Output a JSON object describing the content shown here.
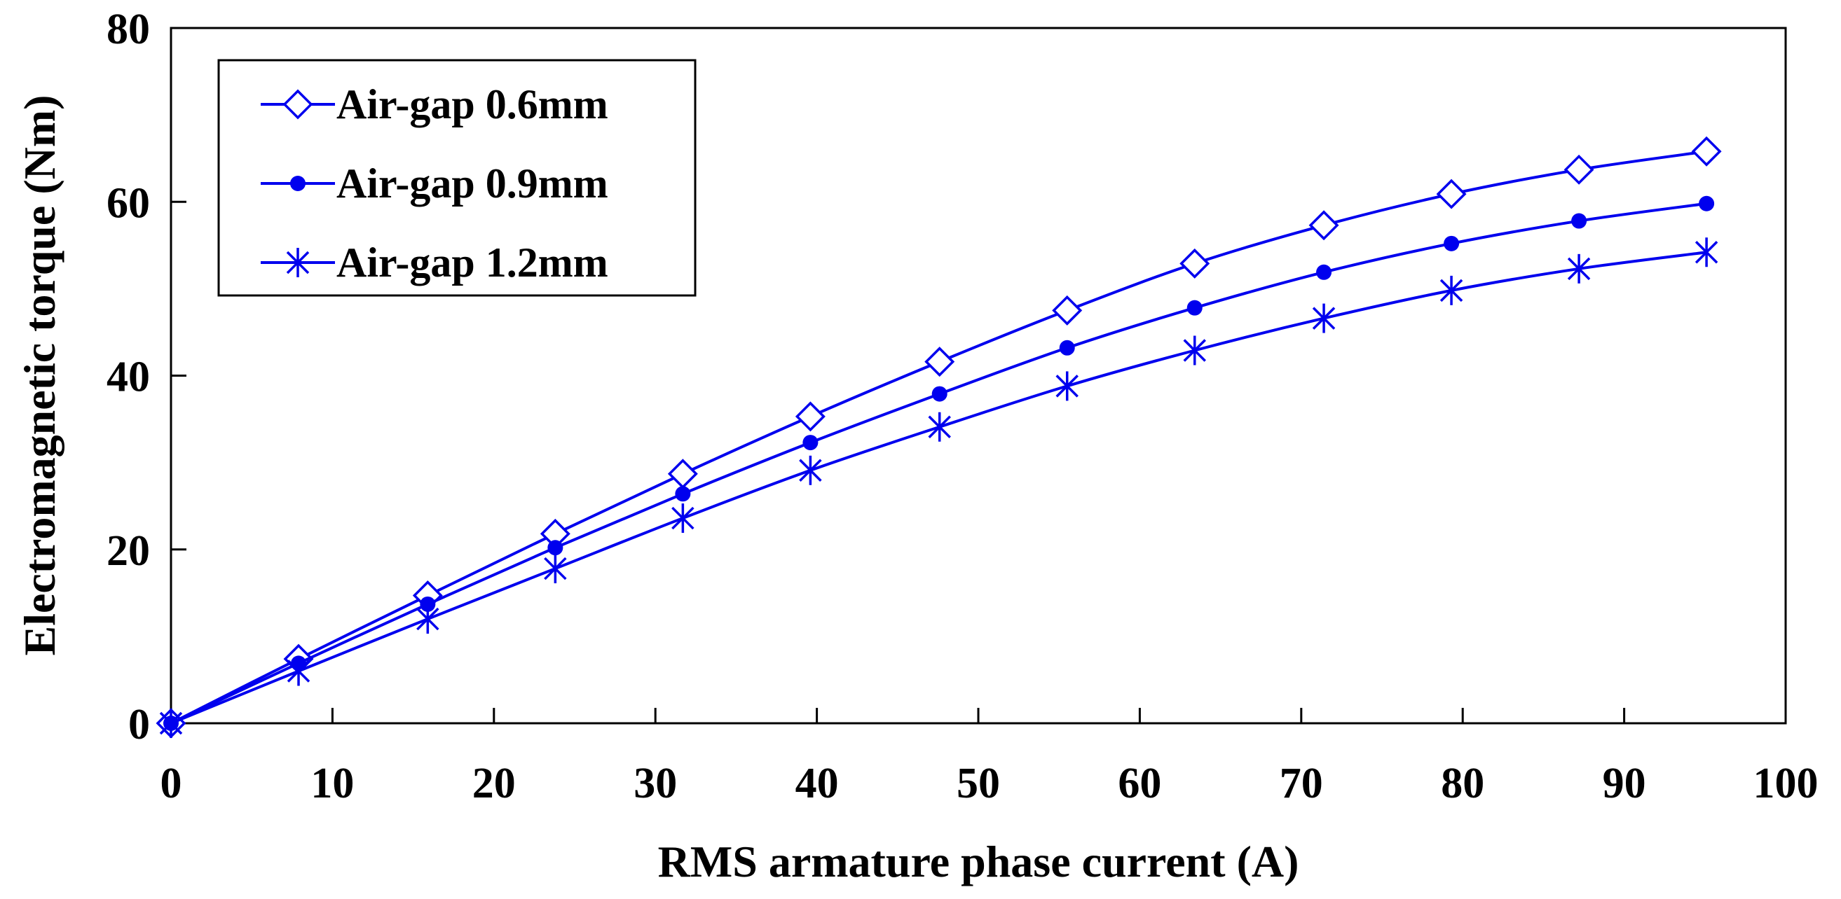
{
  "chart_data": {
    "type": "line",
    "title": "",
    "xlabel": "RMS armature phase current (A)",
    "ylabel": "Electromagnetic torque (Nm)",
    "xlim": [
      0,
      100
    ],
    "ylim": [
      0,
      80
    ],
    "xticks": [
      0,
      10,
      20,
      30,
      40,
      50,
      60,
      70,
      80,
      90,
      100
    ],
    "yticks": [
      0,
      20,
      40,
      60,
      80
    ],
    "grid": false,
    "legend_position": "top-left",
    "line_color": "#0000ee",
    "x": [
      0,
      7.9,
      15.9,
      23.8,
      31.7,
      39.6,
      47.6,
      55.5,
      63.4,
      71.4,
      79.3,
      87.2,
      95.1
    ],
    "series": [
      {
        "name": "Air-gap 0.6mm",
        "marker": "diamond",
        "values": [
          0,
          7.4,
          14.7,
          21.8,
          28.7,
          35.3,
          41.6,
          47.5,
          52.9,
          57.3,
          60.9,
          63.7,
          65.8
        ]
      },
      {
        "name": "Air-gap 0.9mm",
        "marker": "dot",
        "values": [
          0,
          6.9,
          13.7,
          20.2,
          26.4,
          32.3,
          37.9,
          43.2,
          47.8,
          51.9,
          55.2,
          57.8,
          59.8
        ]
      },
      {
        "name": "Air-gap 1.2mm",
        "marker": "asterisk",
        "values": [
          0,
          6.0,
          12.0,
          17.8,
          23.6,
          29.1,
          34.1,
          38.8,
          42.9,
          46.6,
          49.8,
          52.3,
          54.2
        ]
      }
    ]
  }
}
